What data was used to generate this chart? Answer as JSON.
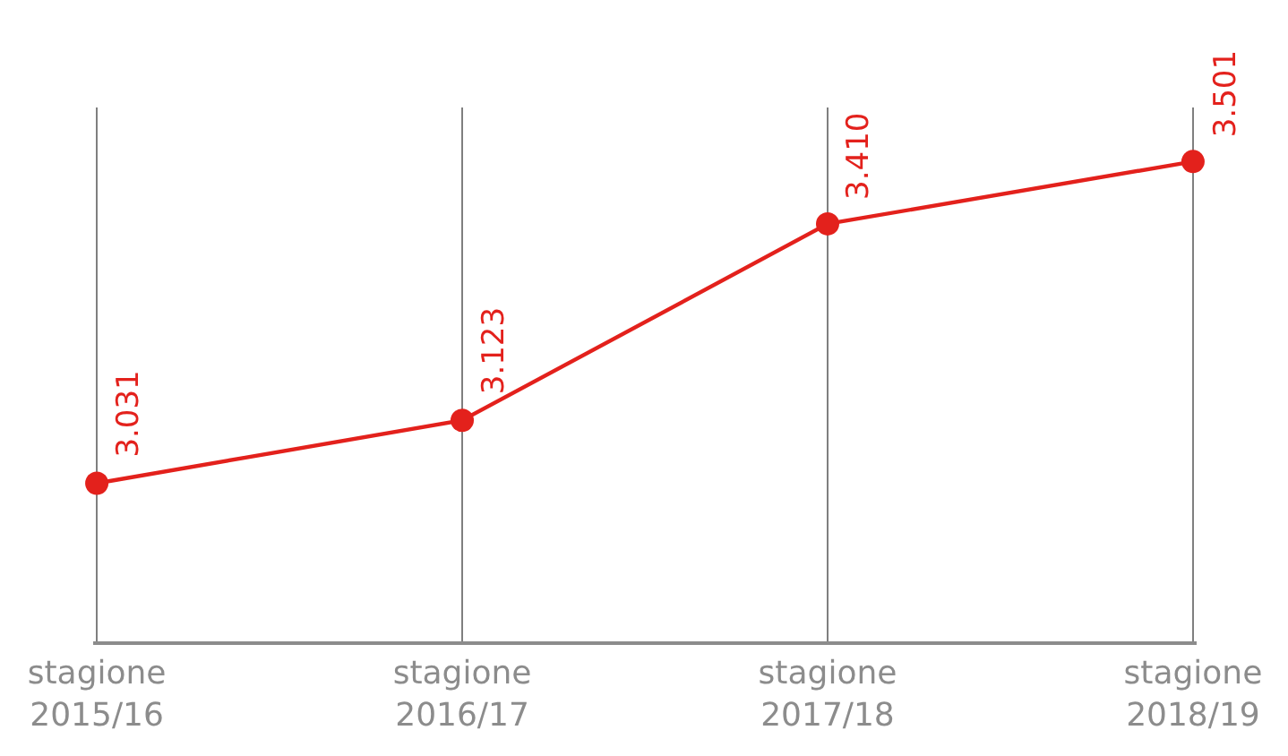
{
  "chart_data": {
    "type": "line",
    "categories": [
      "stagione\n2015/16",
      "stagione\n2016/17",
      "stagione\n2017/18",
      "stagione\n2018/19"
    ],
    "series": [
      {
        "color": "#e3211c",
        "values": [
          3031,
          3123,
          3410,
          3501
        ],
        "value_labels": [
          "3.031",
          "3.123",
          "3.410",
          "3.501"
        ]
      }
    ],
    "ylim": [
      2800,
      3580
    ],
    "grid": "x",
    "marker": "circle",
    "line_style": "solid",
    "tick_labels": "x"
  }
}
